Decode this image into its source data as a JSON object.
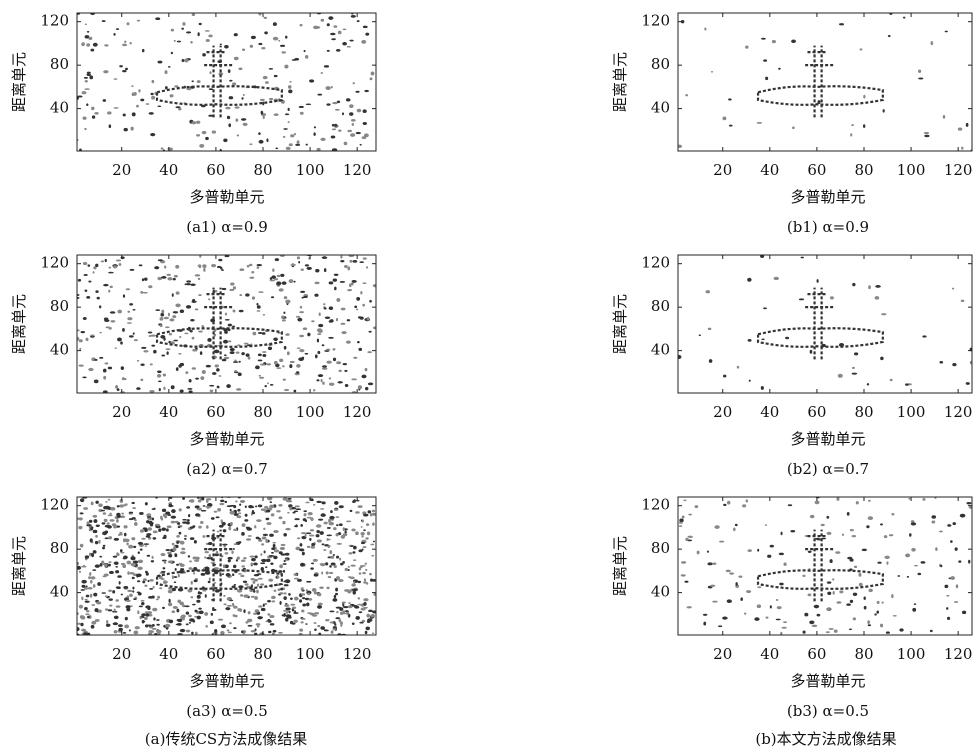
{
  "chart_data": [
    {
      "type": "image",
      "caption": "(a1) α=0.9",
      "xlabel": "多普勒单元",
      "ylabel": "距离单元",
      "xlim": [
        1,
        128
      ],
      "ylim": [
        1,
        128
      ],
      "xticks": [
        20,
        40,
        60,
        80,
        100,
        120
      ],
      "yticks": [
        40,
        80,
        120
      ]
    },
    {
      "type": "image",
      "caption": "(b1) α=0.9",
      "xlabel": "多普勒单元",
      "ylabel": "距离单元",
      "xlim": [
        1,
        128
      ],
      "ylim": [
        1,
        128
      ],
      "xticks": [
        20,
        40,
        60,
        80,
        100,
        120
      ],
      "yticks": [
        40,
        80,
        120
      ]
    },
    {
      "type": "image",
      "caption": "(a2) α=0.7",
      "xlabel": "多普勒单元",
      "ylabel": "距离单元",
      "xlim": [
        1,
        128
      ],
      "ylim": [
        1,
        128
      ],
      "xticks": [
        20,
        40,
        60,
        80,
        100,
        120
      ],
      "yticks": [
        40,
        80,
        120
      ]
    },
    {
      "type": "image",
      "caption": "(b2) α=0.7",
      "xlabel": "多普勒单元",
      "ylabel": "距离单元",
      "xlim": [
        1,
        128
      ],
      "ylim": [
        1,
        128
      ],
      "xticks": [
        20,
        40,
        60,
        80,
        100,
        120
      ],
      "yticks": [
        40,
        80,
        120
      ]
    },
    {
      "type": "image",
      "caption": "(a3) α=0.5",
      "xlabel": "多普勒单元",
      "ylabel": "距离单元",
      "xlim": [
        1,
        128
      ],
      "ylim": [
        1,
        128
      ],
      "xticks": [
        20,
        40,
        60,
        80,
        100,
        120
      ],
      "yticks": [
        40,
        80,
        120
      ]
    },
    {
      "type": "image",
      "caption": "(b3) α=0.5",
      "xlabel": "多普勒单元",
      "ylabel": "距离单元",
      "xlim": [
        1,
        128
      ],
      "ylim": [
        1,
        128
      ],
      "xticks": [
        20,
        40,
        60,
        80,
        100,
        120
      ],
      "yticks": [
        40,
        80,
        120
      ]
    }
  ],
  "column_captions": [
    "(a)传统CS方法成像结果",
    "(b)本文方法成像结果"
  ]
}
